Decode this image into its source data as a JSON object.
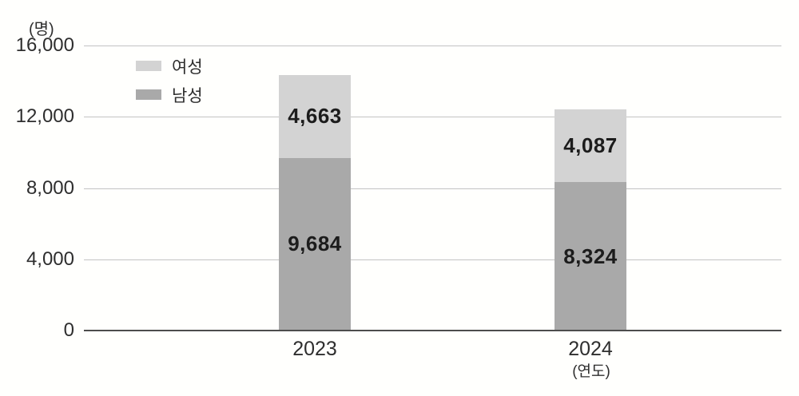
{
  "chart_data": {
    "type": "bar",
    "stacked": true,
    "title": "",
    "categories": [
      "2023",
      "2024"
    ],
    "series_bottom_to_top": [
      {
        "name": "남성",
        "color": "#a9a9a9",
        "values": [
          9684,
          8324
        ]
      },
      {
        "name": "여성",
        "color": "#d3d3d3",
        "values": [
          4663,
          4087
        ]
      }
    ],
    "y_axis": {
      "unit_label": "(명)",
      "ticks": [
        0,
        4000,
        8000,
        12000,
        16000
      ],
      "ylim": [
        0,
        16000
      ]
    },
    "x_axis": {
      "unit_label": "(연도)"
    },
    "legend": {
      "position": "top-left-inside",
      "entries_top_to_bottom": [
        "여성",
        "남성"
      ]
    },
    "grid": true,
    "colors": {
      "female_segment": "#d3d3d3",
      "male_segment": "#a9a9a9",
      "gridline": "#c3c3c3",
      "axis_line": "#4d4d4d",
      "value_text": "#1c1c1c",
      "tick_text": "#2e2e2e"
    }
  }
}
